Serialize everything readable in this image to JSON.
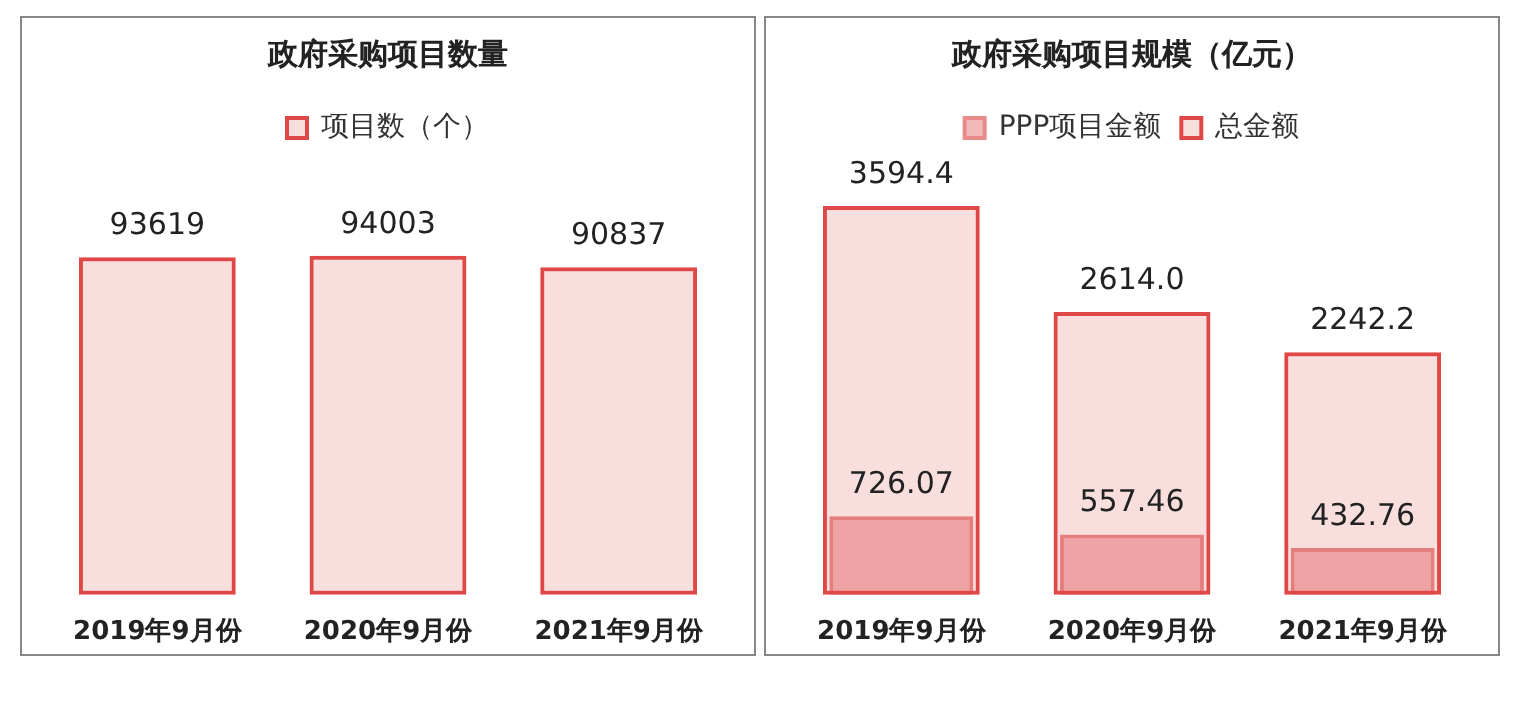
{
  "chart_data": [
    {
      "type": "bar",
      "title": "政府采购项目数量",
      "categories": [
        "2019年9月份",
        "2020年9月份",
        "2021年9月份"
      ],
      "series": [
        {
          "name": "项目数（个）",
          "color": "#e04848",
          "values": [
            93619,
            94003,
            90837
          ]
        }
      ],
      "data_labels": true,
      "legend": "top",
      "grid": false
    },
    {
      "type": "bar",
      "title": "政府采购项目规模（亿元）",
      "categories": [
        "2019年9月份",
        "2020年9月份",
        "2021年9月份"
      ],
      "series": [
        {
          "name": "PPP项目金额",
          "color": "#e98a8a",
          "values": [
            726.07,
            557.46,
            432.76
          ],
          "value_labels": [
            "726.07",
            "557.46",
            "432.76"
          ]
        },
        {
          "name": "总金额",
          "color": "#e04848",
          "values": [
            3594.4,
            2614.0,
            2242.2
          ],
          "value_labels": [
            "3594.4",
            "2614.0",
            "2242.2"
          ]
        }
      ],
      "legend": "top",
      "grid": false
    }
  ]
}
